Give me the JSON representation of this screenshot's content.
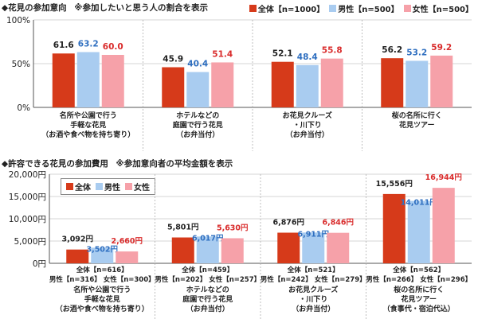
{
  "colors": {
    "all": "#d63a1a",
    "male": "#a9ccf0",
    "female": "#f6a1a9",
    "label_all": "#222222",
    "label_male": "#2f6fc0",
    "label_female": "#d92b2b"
  },
  "chart_data": [
    {
      "type": "bar",
      "title": "◆花見の参加意向",
      "subtitle": "※参加したいと思う人の割合を表示",
      "legend": [
        "全体【n=1000】",
        "男性【n=500】",
        "女性【n=500】"
      ],
      "ylim": [
        0,
        100
      ],
      "yticks": [
        "0%",
        "50%",
        "100%"
      ],
      "categories": [
        [
          "名所や公園で行う",
          "手軽な花見",
          "（お酒や食べ物を持ち寄り）"
        ],
        [
          "ホテルなどの",
          "庭園で行う花見",
          "（お弁当付）"
        ],
        [
          "お花見クルーズ",
          "・川下り",
          "（お弁当付）"
        ],
        [
          "桜の名所に行く",
          "花見ツアー"
        ]
      ],
      "series": [
        {
          "name": "全体",
          "values": [
            61.6,
            45.9,
            52.1,
            56.2
          ],
          "labels": [
            "61.6",
            "45.9",
            "52.1",
            "56.2"
          ]
        },
        {
          "name": "男性",
          "values": [
            63.2,
            40.4,
            48.4,
            53.2
          ],
          "labels": [
            "63.2",
            "40.4",
            "48.4",
            "53.2"
          ]
        },
        {
          "name": "女性",
          "values": [
            60.0,
            51.4,
            55.8,
            59.2
          ],
          "labels": [
            "60.0",
            "51.4",
            "55.8",
            "59.2"
          ]
        }
      ]
    },
    {
      "type": "bar",
      "title": "◆許容できる花見の参加費用",
      "subtitle": "※参加意向者の平均金額を表示",
      "legend": [
        "全体",
        "男性",
        "女性"
      ],
      "ylim": [
        0,
        20000
      ],
      "yticks": [
        "0円",
        "5,000円",
        "10,000円",
        "15,000円",
        "20,000円"
      ],
      "n_labels": [
        [
          "全体【n=616】",
          "男性【n=316】 女性【n=300】"
        ],
        [
          "全体【n=459】",
          "男性【n=202】 女性【n=257】"
        ],
        [
          "全体【n=521】",
          "男性【n=242】 女性【n=279】"
        ],
        [
          "全体【n=562】",
          "男性【n=266】 女性【n=296】"
        ]
      ],
      "categories": [
        [
          "名所や公園で行う",
          "手軽な花見",
          "（お酒や食べ物を持ち寄り）"
        ],
        [
          "ホテルなどの",
          "庭園で行う花見",
          "（お弁当付）"
        ],
        [
          "お花見クルーズ",
          "・川下り",
          "（お弁当付）"
        ],
        [
          "桜の名所に行く",
          "花見ツアー",
          "（食事代・宿泊代込）"
        ]
      ],
      "series": [
        {
          "name": "全体",
          "values": [
            3092,
            5801,
            6876,
            15556
          ],
          "labels": [
            "3,092円",
            "5,801円",
            "6,876円",
            "15,556円"
          ]
        },
        {
          "name": "男性",
          "values": [
            3502,
            6017,
            6911,
            14011
          ],
          "labels": [
            "3,502円",
            "6,017円",
            "6,911円",
            "14,011円"
          ]
        },
        {
          "name": "女性",
          "values": [
            2660,
            5630,
            6846,
            16944
          ],
          "labels": [
            "2,660円",
            "5,630円",
            "6,846円",
            "16,944円"
          ]
        }
      ]
    }
  ]
}
